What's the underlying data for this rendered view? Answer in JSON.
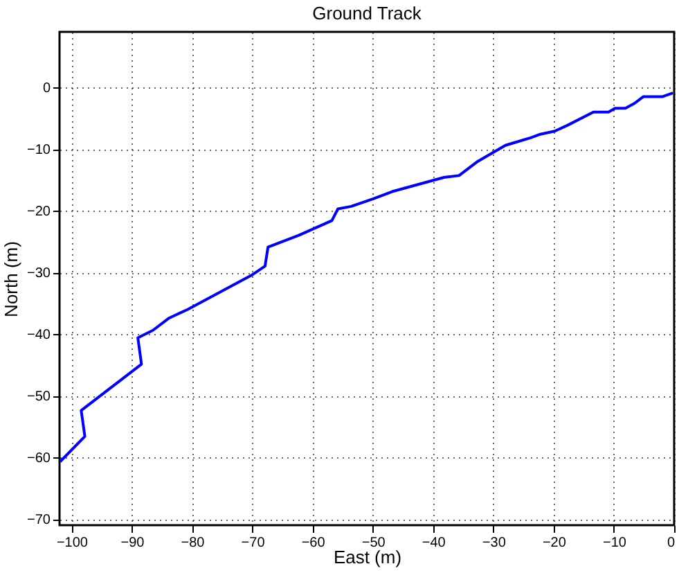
{
  "chart_data": {
    "type": "line",
    "title": "Ground Track",
    "xlabel": "East (m)",
    "ylabel": "North (m)",
    "xlim": [
      -102,
      0
    ],
    "ylim": [
      -71,
      9
    ],
    "xticks": [
      -100,
      -90,
      -80,
      -70,
      -60,
      -50,
      -40,
      -30,
      -20,
      -10,
      0
    ],
    "yticks": [
      -70,
      -60,
      -50,
      -40,
      -30,
      -20,
      -10,
      0
    ],
    "grid": true,
    "marker": "none",
    "line_style": "solid",
    "series": [
      {
        "color": "#0000ff",
        "x": [
          -101.9,
          -97.8,
          -98.4,
          -88.4,
          -89.0,
          -86.5,
          -83.8,
          -80.7,
          -70.2,
          -67.9,
          -67.4,
          -62.3,
          -56.8,
          -55.8,
          -53.6,
          -50.0,
          -46.8,
          -38.2,
          -35.7,
          -32.6,
          -28.0,
          -23.9,
          -22.2,
          -19.8,
          -17.6,
          -13.4,
          -10.9,
          -9.8,
          -8.1,
          -6.6,
          -5.1,
          -1.9,
          -0.2
        ],
        "values": [
          -60.7,
          -56.6,
          -52.4,
          -44.9,
          -40.6,
          -39.4,
          -37.4,
          -36.0,
          -30.5,
          -29.0,
          -25.9,
          -24.0,
          -21.6,
          -19.7,
          -19.3,
          -18.1,
          -16.9,
          -14.6,
          -14.3,
          -12.0,
          -9.4,
          -8.2,
          -7.6,
          -7.1,
          -6.1,
          -4.0,
          -4.0,
          -3.4,
          -3.4,
          -2.6,
          -1.5,
          -1.5,
          -0.9
        ]
      }
    ]
  }
}
